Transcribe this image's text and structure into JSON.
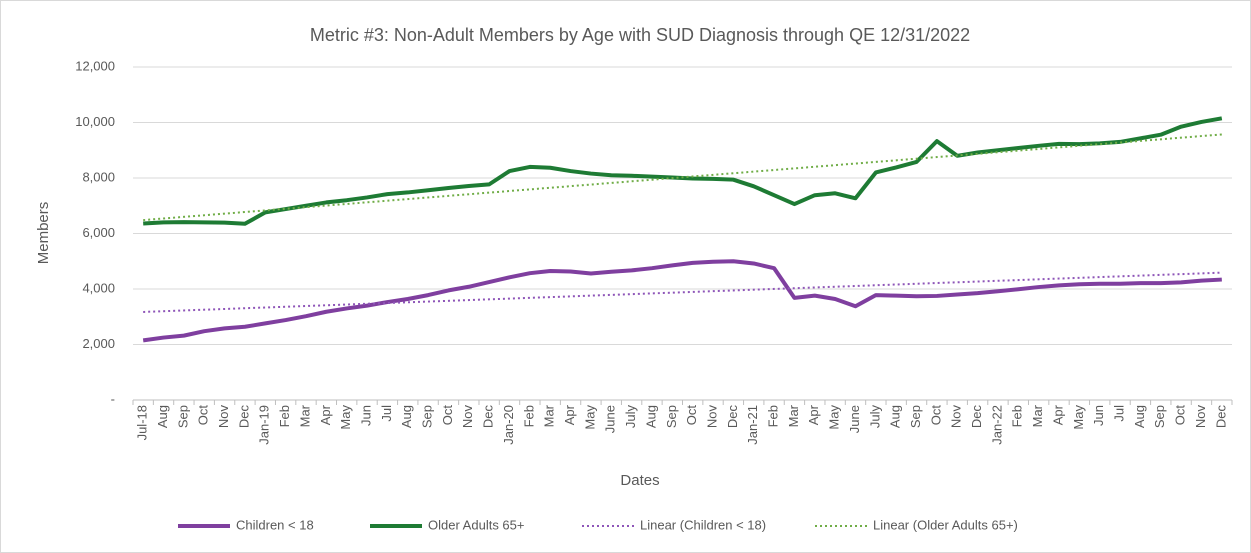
{
  "chart_data": {
    "type": "line",
    "title": "Metric #3: Non-Adult Members by Age with SUD Diagnosis through QE 12/31/2022",
    "x_label": "Dates",
    "y_label": "Members",
    "categories": [
      "Jul-18",
      "Aug",
      "Sep",
      "Oct",
      "Nov",
      "Dec",
      "Jan-19",
      "Feb",
      "Mar",
      "Apr",
      "May",
      "Jun",
      "Jul",
      "Aug",
      "Sep",
      "Oct",
      "Nov",
      "Dec",
      "Jan-20",
      "Feb",
      "Mar",
      "Apr",
      "May",
      "June",
      "July",
      "Aug",
      "Sep",
      "Oct",
      "Nov",
      "Dec",
      "Jan-21",
      "Feb",
      "Mar",
      "Apr",
      "May",
      "June",
      "July",
      "Aug",
      "Sep",
      "Oct",
      "Nov",
      "Dec",
      "Jan-22",
      "Feb",
      "Mar",
      "Apr",
      "May",
      "Jun",
      "Jul",
      "Aug",
      "Sep",
      "Oct",
      "Nov",
      "Dec"
    ],
    "series": [
      {
        "name": "Children < 18",
        "color": "#7f3f9f",
        "values": [
          2150,
          2250,
          2320,
          2480,
          2580,
          2640,
          2760,
          2880,
          3020,
          3180,
          3300,
          3400,
          3530,
          3640,
          3780,
          3950,
          4080,
          4250,
          4420,
          4570,
          4650,
          4630,
          4560,
          4620,
          4670,
          4750,
          4850,
          4940,
          4980,
          5000,
          4920,
          4750,
          3680,
          3760,
          3640,
          3380,
          3780,
          3760,
          3740,
          3750,
          3800,
          3850,
          3920,
          3990,
          4070,
          4130,
          4170,
          4190,
          4190,
          4210,
          4210,
          4240,
          4300,
          4340
        ]
      },
      {
        "name": "Older Adults 65+",
        "color": "#1e7b34",
        "values": [
          6360,
          6400,
          6410,
          6400,
          6390,
          6350,
          6760,
          6880,
          7000,
          7120,
          7200,
          7300,
          7420,
          7480,
          7560,
          7640,
          7710,
          7770,
          8250,
          8400,
          8370,
          8250,
          8160,
          8100,
          8080,
          8050,
          8020,
          7980,
          7970,
          7940,
          7700,
          7380,
          7060,
          7380,
          7450,
          7270,
          8200,
          8380,
          8580,
          9330,
          8800,
          8920,
          9000,
          9080,
          9160,
          9230,
          9220,
          9250,
          9300,
          9430,
          9560,
          9850,
          10020,
          10150
        ]
      },
      {
        "name": "Linear (Children < 18)",
        "color": "#8e55b8",
        "trend_of": 0,
        "dash": true
      },
      {
        "name": "Linear (Older Adults 65+)",
        "color": "#70ad47",
        "trend_of": 1,
        "dash": true
      }
    ],
    "ylim": [
      0,
      12000
    ],
    "yticks": [
      {
        "value": 0,
        "label": "-"
      },
      {
        "value": 2000,
        "label": "2,000"
      },
      {
        "value": 4000,
        "label": "4,000"
      },
      {
        "value": 6000,
        "label": "6,000"
      },
      {
        "value": 8000,
        "label": "8,000"
      },
      {
        "value": 10000,
        "label": "10,000"
      },
      {
        "value": 12000,
        "label": "12,000"
      }
    ],
    "grid": true,
    "legend": "bottom"
  }
}
